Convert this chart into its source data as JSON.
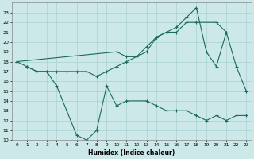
{
  "xlabel": "Humidex (Indice chaleur)",
  "background_color": "#cce8e8",
  "grid_color": "#aad0d0",
  "line_color": "#1a6b5a",
  "ylim": [
    10,
    23.5
  ],
  "xlim": [
    -0.5,
    23.5
  ],
  "upper_x": [
    0,
    10,
    11,
    12,
    13,
    14,
    15,
    16,
    17,
    18,
    19,
    20,
    21
  ],
  "upper_y": [
    18,
    19.0,
    18.5,
    18.5,
    19.5,
    20.5,
    21.0,
    21.5,
    22.5,
    23.5,
    19.0,
    17.5,
    21.0
  ],
  "middle_x": [
    0,
    1,
    2,
    3,
    4,
    5,
    6,
    7,
    8,
    9,
    10,
    11,
    12,
    13,
    14,
    15,
    16,
    17,
    18,
    20,
    21,
    22,
    23
  ],
  "middle_y": [
    18,
    17.5,
    17.0,
    17.0,
    17.0,
    17.0,
    17.0,
    17.0,
    16.5,
    17.0,
    17.5,
    18.0,
    18.5,
    19.0,
    20.5,
    21.0,
    21.0,
    22.0,
    22.0,
    22.0,
    21.0,
    17.5,
    15.0
  ],
  "lower_x": [
    1,
    2,
    3,
    4,
    5,
    6,
    7,
    8,
    9,
    10,
    11,
    13,
    14,
    15,
    16,
    17,
    18,
    19,
    20,
    21,
    22,
    23
  ],
  "lower_y": [
    17.5,
    17.0,
    17.0,
    15.5,
    13.0,
    10.5,
    10.0,
    11.0,
    15.5,
    13.5,
    14.0,
    14.0,
    13.5,
    13.0,
    13.0,
    13.0,
    12.5,
    12.0,
    12.5,
    12.0,
    12.5,
    12.5
  ],
  "yticks": [
    10,
    11,
    12,
    13,
    14,
    15,
    16,
    17,
    18,
    19,
    20,
    21,
    22,
    23
  ],
  "xticks": [
    0,
    1,
    2,
    3,
    4,
    5,
    6,
    7,
    8,
    9,
    10,
    11,
    12,
    13,
    14,
    15,
    16,
    17,
    18,
    19,
    20,
    21,
    22,
    23
  ]
}
